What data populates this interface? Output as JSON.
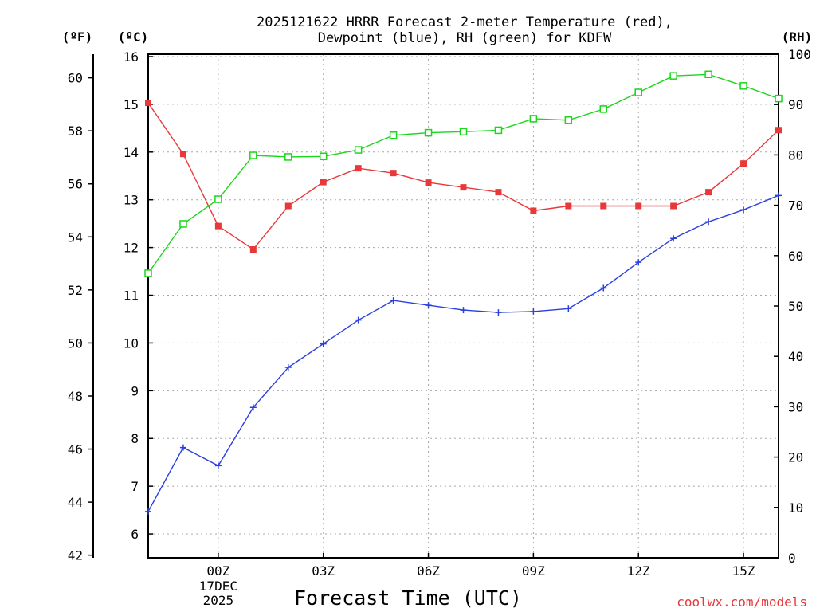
{
  "chart_data": {
    "type": "line",
    "title_lines": [
      "2025121622 HRRR Forecast 2-meter Temperature (red),",
      "Dewpoint (blue), RH (green) for KDFW"
    ],
    "xlabel": "Forecast Time (UTC)",
    "credit": "coolwx.com/models",
    "units": {
      "fahrenheit": "(ºF)",
      "celsius": "(ºC)",
      "rh": "(RH)"
    },
    "x_hours": [
      22,
      23,
      24,
      25,
      26,
      27,
      28,
      29,
      30,
      31,
      32,
      33,
      34,
      35,
      36,
      37,
      38,
      39,
      40
    ],
    "x_range": [
      22,
      40
    ],
    "x_ticks": [
      {
        "hour": 24,
        "label": "00Z",
        "sublabels": [
          "17DEC",
          "2025"
        ]
      },
      {
        "hour": 27,
        "label": "03Z",
        "sublabels": []
      },
      {
        "hour": 30,
        "label": "06Z",
        "sublabels": []
      },
      {
        "hour": 33,
        "label": "09Z",
        "sublabels": []
      },
      {
        "hour": 36,
        "label": "12Z",
        "sublabels": []
      },
      {
        "hour": 39,
        "label": "15Z",
        "sublabels": []
      }
    ],
    "celsius_axis": {
      "range": [
        5.5,
        16.05
      ],
      "ticks": [
        "6",
        "7",
        "8",
        "9",
        "10",
        "11",
        "12",
        "13",
        "14",
        "15",
        "16"
      ]
    },
    "fahrenheit_axis": {
      "ticks": [
        "42",
        "44",
        "46",
        "48",
        "50",
        "52",
        "54",
        "56",
        "58",
        "60"
      ]
    },
    "rh_axis": {
      "range": [
        0,
        100
      ],
      "ticks": [
        "0",
        "10",
        "20",
        "30",
        "40",
        "50",
        "60",
        "70",
        "80",
        "90",
        "100"
      ]
    },
    "series": [
      {
        "name": "Temperature",
        "units": "C",
        "color": "#e8383a",
        "marker": "filled-square",
        "values": [
          15.03,
          13.96,
          12.45,
          11.96,
          12.87,
          13.37,
          13.66,
          13.56,
          13.36,
          13.26,
          13.16,
          12.77,
          12.87,
          12.87,
          12.87,
          12.87,
          13.16,
          13.76,
          14.46
        ]
      },
      {
        "name": "Dewpoint",
        "units": "C",
        "color": "#2a3fe0",
        "marker": "plus",
        "values": [
          6.47,
          7.81,
          7.43,
          8.65,
          9.49,
          9.98,
          10.48,
          10.89,
          10.79,
          10.69,
          10.64,
          10.66,
          10.72,
          11.15,
          11.69,
          12.19,
          12.54,
          12.79,
          13.09
        ]
      },
      {
        "name": "RH",
        "units": "%",
        "color": "#19d719",
        "marker": "open-square",
        "values": [
          56.5,
          66.3,
          71.2,
          79.9,
          79.6,
          79.7,
          81.0,
          83.9,
          84.4,
          84.6,
          84.9,
          87.2,
          86.9,
          89.1,
          92.4,
          95.7,
          96.0,
          93.7,
          91.2
        ]
      }
    ]
  }
}
